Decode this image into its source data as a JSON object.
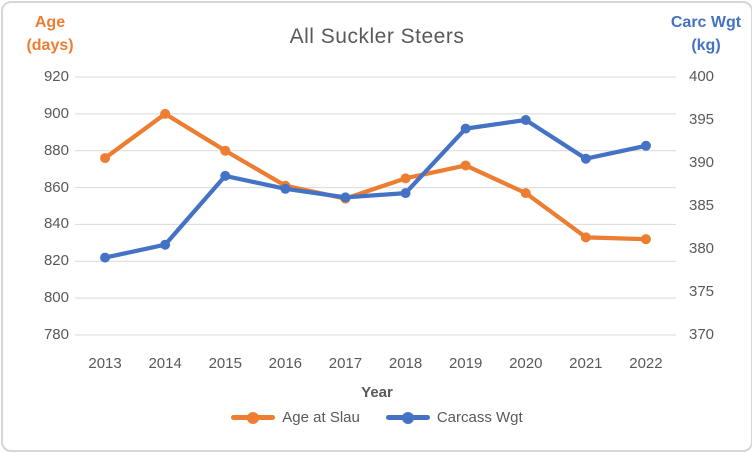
{
  "chart": {
    "title": "All Suckler Steers",
    "left_axis_title": "Age\n(days)",
    "right_axis_title": "Carc Wgt\n(kg)",
    "x_axis_title": "Year",
    "colors": {
      "age_series": "#ED7D31",
      "carcass_series": "#4472C4",
      "gridline": "#D9D9D9",
      "text": "#595959",
      "border": "#D6D6D6"
    }
  },
  "chart_data": {
    "type": "line",
    "title": "All Suckler Steers",
    "categories": [
      "2013",
      "2014",
      "2015",
      "2016",
      "2017",
      "2018",
      "2019",
      "2020",
      "2021",
      "2022"
    ],
    "series": [
      {
        "name": "Age at Slau",
        "axis": "left",
        "color": "#ED7D31",
        "values": [
          876,
          900,
          880,
          861,
          854,
          865,
          872,
          857,
          833,
          832
        ]
      },
      {
        "name": "Carcass Wgt",
        "axis": "right",
        "color": "#4472C4",
        "values": [
          379,
          380.5,
          388.5,
          387,
          386,
          386.5,
          394,
          395,
          390.5,
          392
        ]
      }
    ],
    "left_axis": {
      "label": "Age (days)",
      "min": 780,
      "max": 920,
      "step": 20,
      "ticks": [
        920,
        900,
        880,
        860,
        840,
        820,
        800,
        780
      ]
    },
    "right_axis": {
      "label": "Carc Wgt (kg)",
      "min": 370,
      "max": 400,
      "step": 5,
      "ticks": [
        400,
        395,
        390,
        385,
        380,
        375,
        370
      ]
    },
    "xlabel": "Year",
    "grid": true,
    "legend_position": "bottom"
  }
}
